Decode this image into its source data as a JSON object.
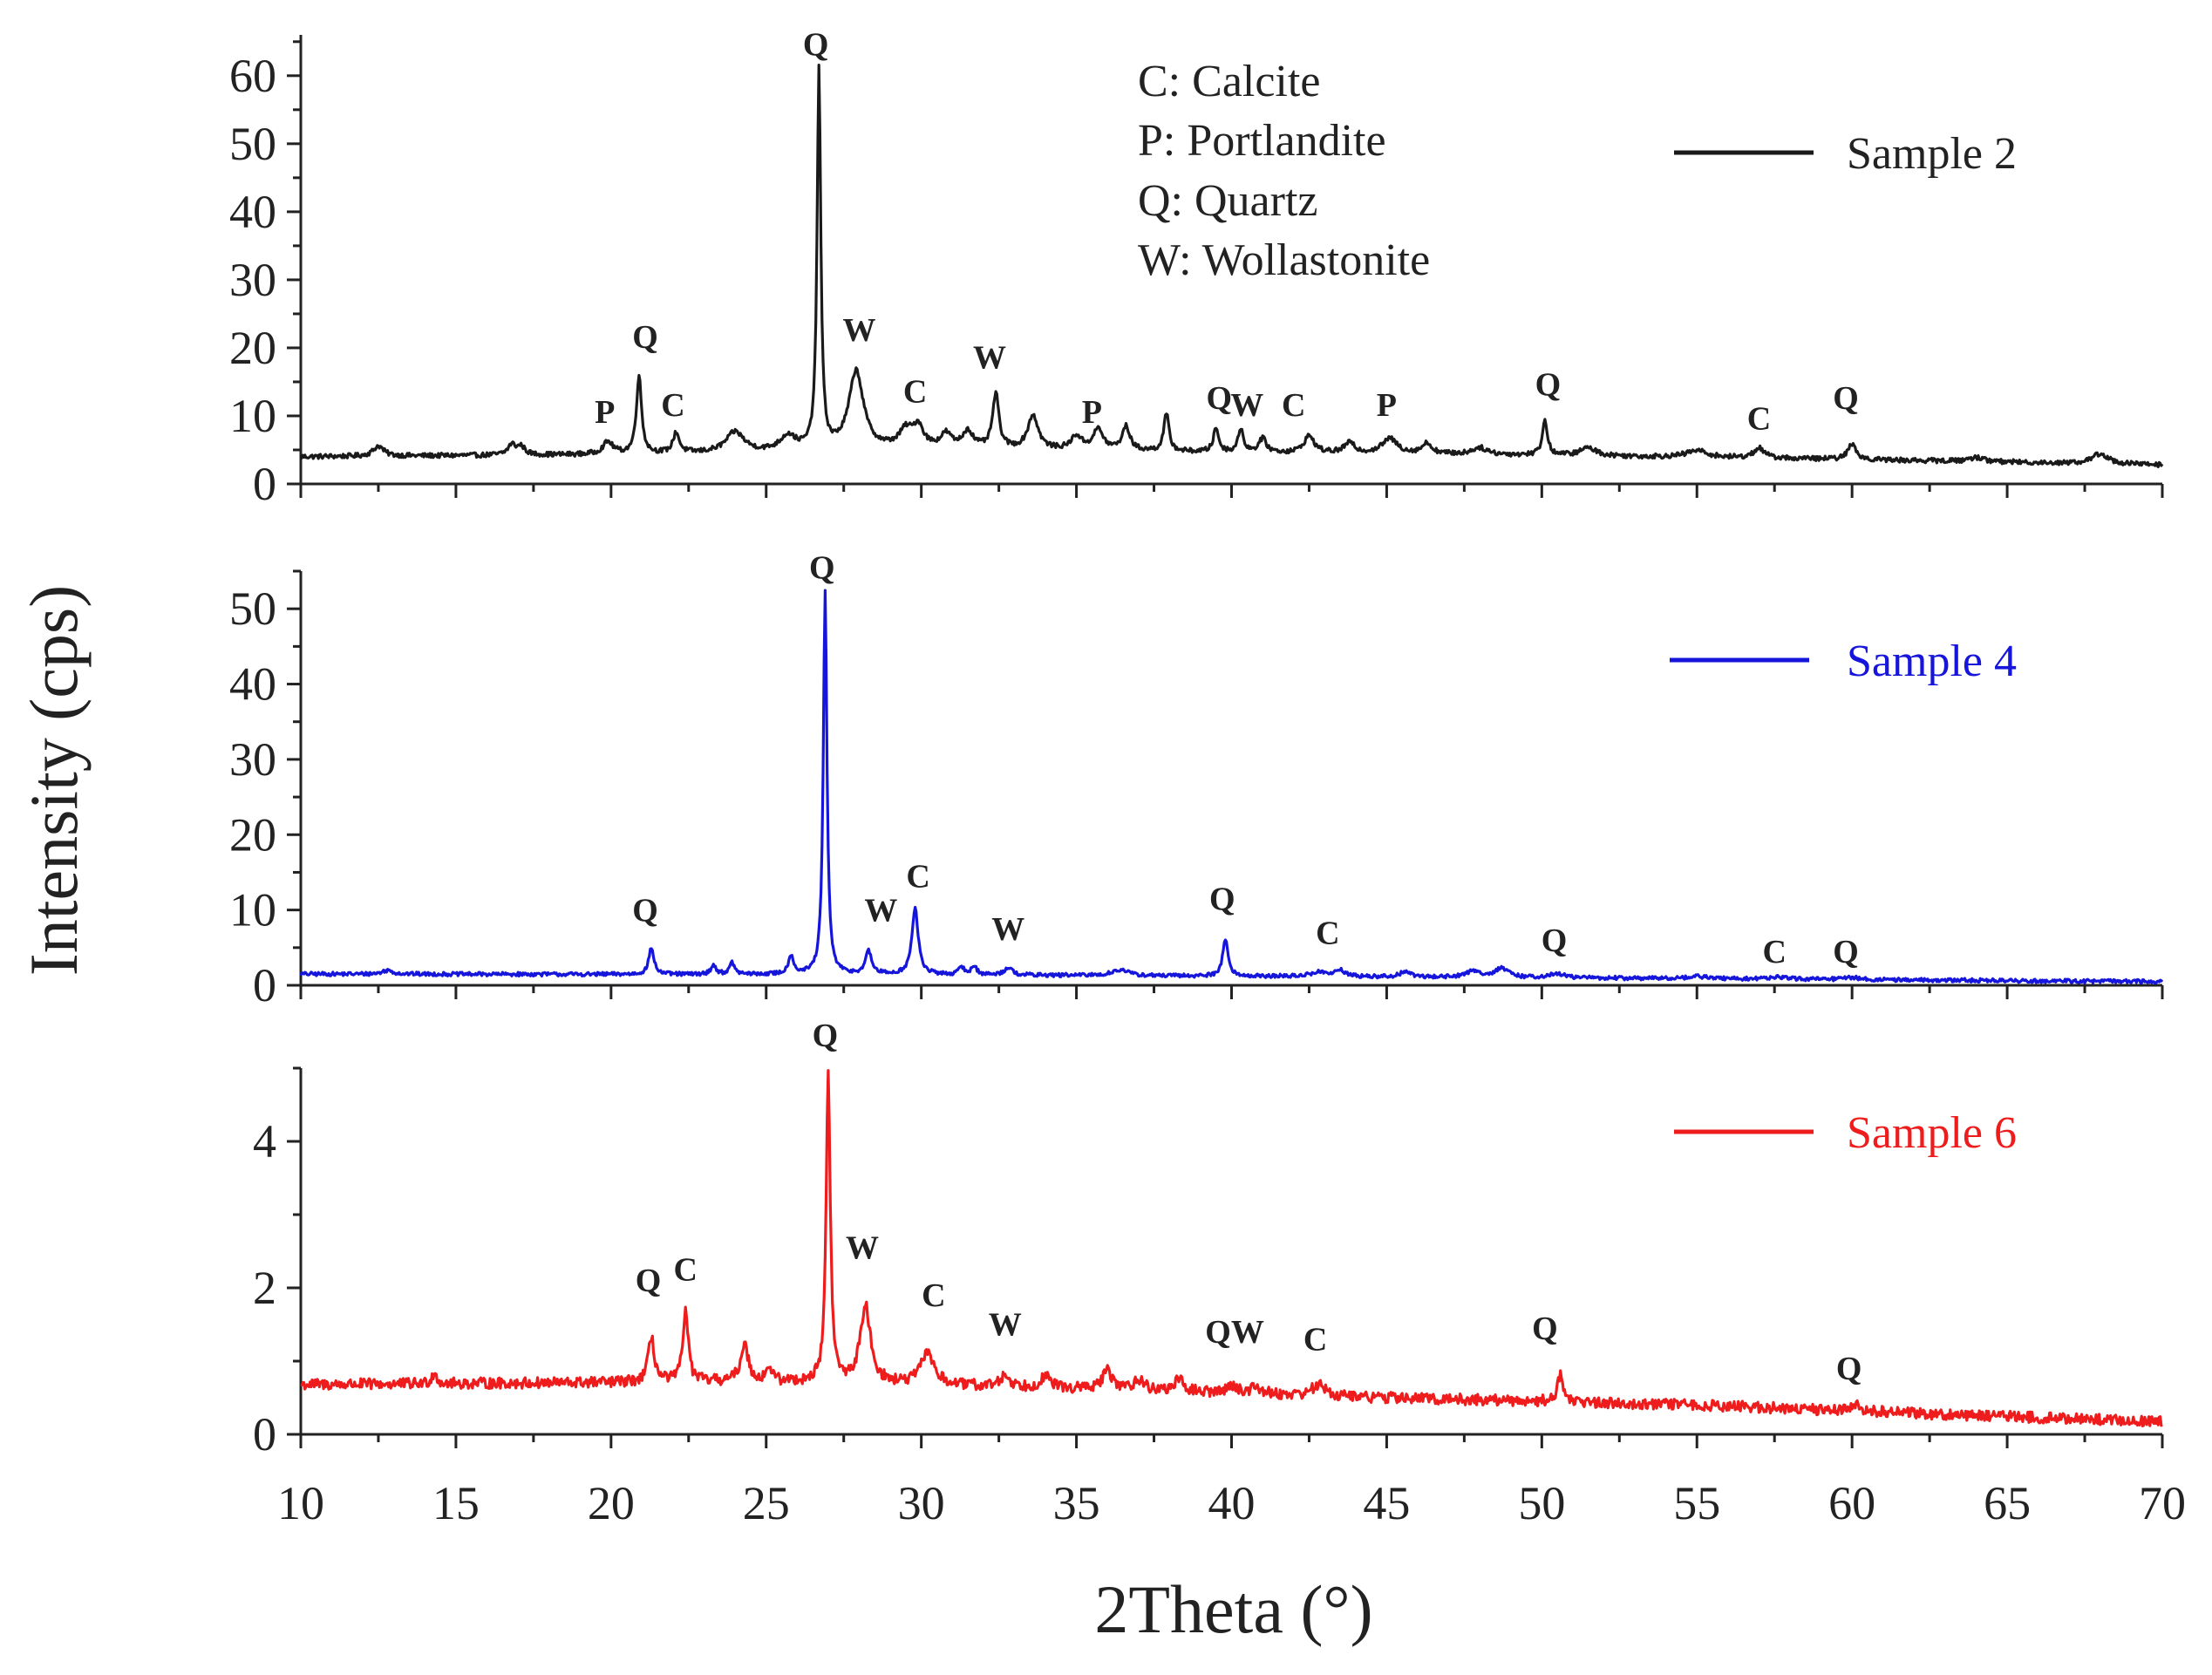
{
  "chart_data": {
    "type": "line",
    "title": "",
    "xlabel": "2Theta (°)",
    "ylabel": "Intensity (cps)",
    "xlim": [
      10,
      70
    ],
    "xticks": [
      10,
      15,
      20,
      25,
      30,
      35,
      40,
      45,
      50,
      55,
      60,
      65,
      70
    ],
    "phase_key": [
      "C: Calcite",
      "P: Portlandite",
      "Q: Quartz",
      "W: Wollastonite"
    ],
    "panels": [
      {
        "name": "Sample 2",
        "color": "#1a1a1a",
        "ylim": [
          0,
          66
        ],
        "yticks": [
          0,
          10,
          20,
          30,
          40,
          50,
          60
        ],
        "baseline": [
          [
            10,
            4
          ],
          [
            20,
            4.3
          ],
          [
            25,
            4.6
          ],
          [
            30,
            5.2
          ],
          [
            40,
            4.6
          ],
          [
            50,
            4.2
          ],
          [
            60,
            3.6
          ],
          [
            70,
            2.8
          ]
        ],
        "peaks": [
          [
            12.5,
            1.5,
            0.2
          ],
          [
            16.8,
            1.5,
            0.15
          ],
          [
            17.1,
            1.2,
            0.15
          ],
          [
            19.9,
            1.8,
            0.2
          ],
          [
            20.9,
            11.5,
            0.1
          ],
          [
            22.1,
            3.0,
            0.12
          ],
          [
            24.0,
            3.0,
            0.35
          ],
          [
            25.7,
            2.2,
            0.3
          ],
          [
            26.7,
            56.0,
            0.07
          ],
          [
            27.9,
            11.5,
            0.28
          ],
          [
            29.5,
            2.5,
            0.25
          ],
          [
            29.9,
            3.0,
            0.2
          ],
          [
            30.8,
            2.0,
            0.2
          ],
          [
            31.5,
            2.5,
            0.2
          ],
          [
            32.4,
            8.0,
            0.12
          ],
          [
            33.6,
            5.0,
            0.2
          ],
          [
            35.0,
            2.0,
            0.2
          ],
          [
            35.7,
            3.0,
            0.2
          ],
          [
            36.6,
            3.5,
            0.15
          ],
          [
            37.9,
            5.5,
            0.1
          ],
          [
            39.5,
            3.5,
            0.1
          ],
          [
            40.3,
            3.5,
            0.1
          ],
          [
            41.0,
            2.0,
            0.15
          ],
          [
            42.5,
            2.5,
            0.2
          ],
          [
            43.8,
            1.5,
            0.2
          ],
          [
            45.1,
            2.2,
            0.3
          ],
          [
            46.3,
            1.5,
            0.2
          ],
          [
            48.0,
            1.0,
            0.3
          ],
          [
            50.1,
            5.0,
            0.1
          ],
          [
            51.5,
            1.2,
            0.3
          ],
          [
            55.0,
            1.0,
            0.4
          ],
          [
            57.0,
            1.5,
            0.2
          ],
          [
            60.0,
            2.3,
            0.15
          ],
          [
            64.0,
            0.6,
            0.3
          ],
          [
            68.0,
            1.5,
            0.3
          ]
        ],
        "noise": 0.35,
        "labels": [
          {
            "t": "P",
            "x": 19.8,
            "y": 9
          },
          {
            "t": "Q",
            "x": 21.1,
            "y": 20
          },
          {
            "t": "C",
            "x": 22.0,
            "y": 10
          },
          {
            "t": "Q",
            "x": 26.6,
            "y": 63
          },
          {
            "t": "W",
            "x": 28.0,
            "y": 21
          },
          {
            "t": "C",
            "x": 29.8,
            "y": 12
          },
          {
            "t": "W",
            "x": 32.2,
            "y": 17
          },
          {
            "t": "P",
            "x": 35.5,
            "y": 9
          },
          {
            "t": "Q",
            "x": 39.6,
            "y": 11
          },
          {
            "t": "W",
            "x": 40.5,
            "y": 10
          },
          {
            "t": "C",
            "x": 42.0,
            "y": 10
          },
          {
            "t": "P",
            "x": 45.0,
            "y": 10
          },
          {
            "t": "Q",
            "x": 50.2,
            "y": 13
          },
          {
            "t": "C",
            "x": 57.0,
            "y": 8
          },
          {
            "t": "Q",
            "x": 59.8,
            "y": 11
          }
        ]
      },
      {
        "name": "Sample 4",
        "color": "#1515dc",
        "ylim": [
          0,
          55
        ],
        "yticks": [
          0,
          10,
          20,
          30,
          40,
          50
        ],
        "baseline": [
          [
            10,
            1.5
          ],
          [
            30,
            1.4
          ],
          [
            50,
            1.0
          ],
          [
            70,
            0.5
          ]
        ],
        "peaks": [
          [
            12.8,
            0.5,
            0.2
          ],
          [
            21.3,
            3.5,
            0.1
          ],
          [
            23.3,
            1.2,
            0.1
          ],
          [
            23.9,
            1.5,
            0.1
          ],
          [
            25.8,
            2.5,
            0.1
          ],
          [
            26.9,
            51.0,
            0.07
          ],
          [
            28.3,
            3.0,
            0.12
          ],
          [
            29.8,
            8.8,
            0.12
          ],
          [
            31.3,
            1.0,
            0.1
          ],
          [
            31.7,
            1.2,
            0.1
          ],
          [
            32.8,
            1.0,
            0.15
          ],
          [
            36.4,
            0.8,
            0.3
          ],
          [
            39.8,
            5.0,
            0.1
          ],
          [
            42.8,
            0.6,
            0.3
          ],
          [
            43.5,
            0.8,
            0.2
          ],
          [
            45.6,
            0.7,
            0.2
          ],
          [
            47.8,
            0.8,
            0.3
          ],
          [
            48.7,
            1.2,
            0.25
          ],
          [
            50.5,
            0.5,
            0.3
          ],
          [
            55.0,
            0.3,
            0.4
          ],
          [
            57.6,
            0.3,
            0.3
          ],
          [
            60.0,
            0.3,
            0.3
          ]
        ],
        "noise": 0.25,
        "labels": [
          {
            "t": "Q",
            "x": 21.1,
            "y": 8.5
          },
          {
            "t": "Q",
            "x": 26.8,
            "y": 54
          },
          {
            "t": "W",
            "x": 28.7,
            "y": 8.5
          },
          {
            "t": "C",
            "x": 29.9,
            "y": 13
          },
          {
            "t": "W",
            "x": 32.8,
            "y": 6
          },
          {
            "t": "Q",
            "x": 39.7,
            "y": 10
          },
          {
            "t": "C",
            "x": 43.1,
            "y": 5.5
          },
          {
            "t": "Q",
            "x": 50.4,
            "y": 4.5
          },
          {
            "t": "C",
            "x": 57.5,
            "y": 3.0
          },
          {
            "t": "Q",
            "x": 59.8,
            "y": 3.0
          }
        ]
      },
      {
        "name": "Sample 6",
        "color": "#ee1c1c",
        "ylim": [
          0,
          5
        ],
        "yticks": [
          0,
          2,
          4
        ],
        "baseline": [
          [
            10,
            0.68
          ],
          [
            25,
            0.72
          ],
          [
            35,
            0.62
          ],
          [
            45,
            0.5
          ],
          [
            55,
            0.4
          ],
          [
            60,
            0.32
          ],
          [
            70,
            0.17
          ]
        ],
        "peaks": [
          [
            14.3,
            0.15,
            0.1
          ],
          [
            21.3,
            0.6,
            0.12
          ],
          [
            22.4,
            1.0,
            0.1
          ],
          [
            24.3,
            0.5,
            0.15
          ],
          [
            25.1,
            0.2,
            0.1
          ],
          [
            27.0,
            4.2,
            0.08
          ],
          [
            28.2,
            1.05,
            0.2
          ],
          [
            30.2,
            0.45,
            0.25
          ],
          [
            32.7,
            0.15,
            0.2
          ],
          [
            34.0,
            0.15,
            0.2
          ],
          [
            36.0,
            0.25,
            0.2
          ],
          [
            37.0,
            0.15,
            0.2
          ],
          [
            38.3,
            0.15,
            0.2
          ],
          [
            40.0,
            0.1,
            0.2
          ],
          [
            40.8,
            0.1,
            0.2
          ],
          [
            42.8,
            0.15,
            0.25
          ],
          [
            50.6,
            0.35,
            0.12
          ],
          [
            60.1,
            0.1,
            0.2
          ]
        ],
        "noise": 0.075,
        "labels": [
          {
            "t": "Q",
            "x": 21.2,
            "y": 1.95
          },
          {
            "t": "C",
            "x": 22.4,
            "y": 2.1
          },
          {
            "t": "Q",
            "x": 26.9,
            "y": 5.3
          },
          {
            "t": "W",
            "x": 28.1,
            "y": 2.4
          },
          {
            "t": "C",
            "x": 30.4,
            "y": 1.75
          },
          {
            "t": "W",
            "x": 32.7,
            "y": 1.35
          },
          {
            "t": "QW",
            "x": 40.1,
            "y": 1.25
          },
          {
            "t": "C",
            "x": 42.7,
            "y": 1.15
          },
          {
            "t": "Q",
            "x": 50.1,
            "y": 1.3
          },
          {
            "t": "Q",
            "x": 59.9,
            "y": 0.75
          }
        ]
      }
    ]
  }
}
